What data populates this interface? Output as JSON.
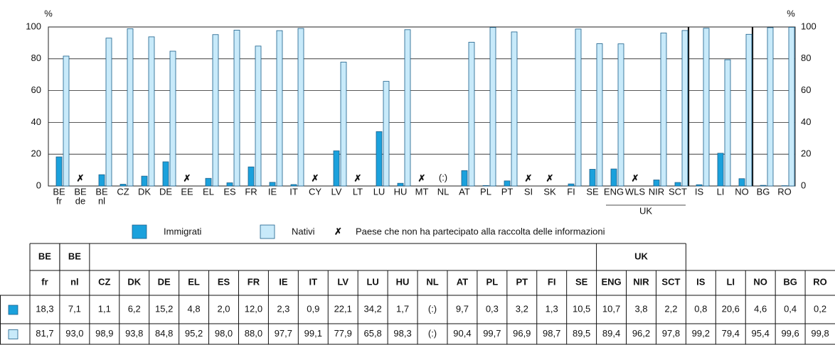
{
  "chart_data": {
    "type": "bar",
    "y_unit": "%",
    "categories": [
      "BE",
      "BE",
      "BE",
      "CZ",
      "DK",
      "DE",
      "EE",
      "EL",
      "ES",
      "FR",
      "IE",
      "IT",
      "CY",
      "LV",
      "LT",
      "LU",
      "HU",
      "MT",
      "NL",
      "AT",
      "PL",
      "PT",
      "SI",
      "SK",
      "FI",
      "SE",
      "ENG",
      "WLS",
      "NIR",
      "SCT",
      "IS",
      "LI",
      "NO",
      "BG",
      "RO"
    ],
    "subcategories": [
      "fr",
      "de",
      "nl",
      null,
      null,
      null,
      null,
      null,
      null,
      null,
      null,
      null,
      null,
      null,
      null,
      null,
      null,
      null,
      null,
      null,
      null,
      null,
      null,
      null,
      null,
      null,
      null,
      null,
      null,
      null,
      null,
      null,
      null,
      null,
      null
    ],
    "groups": [
      {
        "label": "UK",
        "members": [
          "ENG",
          "WLS",
          "NIR",
          "SCT"
        ]
      }
    ],
    "series": [
      {
        "name": "Immigrati",
        "color": "#1ba1dc",
        "values": [
          18.3,
          null,
          7.1,
          1.1,
          6.2,
          15.2,
          null,
          4.8,
          2.0,
          12.0,
          2.3,
          0.9,
          null,
          22.1,
          null,
          34.2,
          1.7,
          null,
          null,
          9.7,
          0.3,
          3.2,
          null,
          null,
          1.3,
          10.5,
          10.7,
          null,
          3.8,
          2.2,
          0.8,
          20.6,
          4.6,
          0.4,
          0.2
        ],
        "value_labels": [
          "18,3",
          null,
          "7,1",
          "1,1",
          "6,2",
          "15,2",
          null,
          "4,8",
          "2,0",
          "12,0",
          "2,3",
          "0,9",
          null,
          "22,1",
          null,
          "34,2",
          "1,7",
          null,
          "(:)",
          "9,7",
          "0,3",
          "3,2",
          null,
          null,
          "1,3",
          "10,5",
          "10,7",
          null,
          "3,8",
          "2,2",
          "0,8",
          "20,6",
          "4,6",
          "0,4",
          "0,2"
        ]
      },
      {
        "name": "Nativi",
        "color": "#c8eafa",
        "values": [
          81.7,
          null,
          93.0,
          98.9,
          93.8,
          84.8,
          null,
          95.2,
          98.0,
          88.0,
          97.7,
          99.1,
          null,
          77.9,
          null,
          65.8,
          98.3,
          null,
          null,
          90.4,
          99.7,
          96.9,
          null,
          null,
          98.7,
          89.5,
          89.4,
          null,
          96.2,
          97.8,
          99.2,
          79.4,
          95.4,
          99.6,
          99.8
        ],
        "value_labels": [
          "81,7",
          null,
          "93,0",
          "98,9",
          "93,8",
          "84,8",
          null,
          "95,2",
          "98,0",
          "88,0",
          "97,7",
          "99,1",
          null,
          "77,9",
          null,
          "65,8",
          "98,3",
          null,
          "(:)",
          "90,4",
          "99,7",
          "96,9",
          null,
          null,
          "98,7",
          "89,5",
          "89,4",
          null,
          "96,2",
          "97,8",
          "99,2",
          "79,4",
          "95,4",
          "99,6",
          "99,8"
        ]
      }
    ],
    "missing": {
      "marker": "✗",
      "label": "Paese che non ha partecipato alla raccolta delle informazioni"
    },
    "ylim": [
      0,
      100
    ],
    "yticks": [
      0,
      20,
      40,
      60,
      80,
      100
    ],
    "grid": true
  }
}
